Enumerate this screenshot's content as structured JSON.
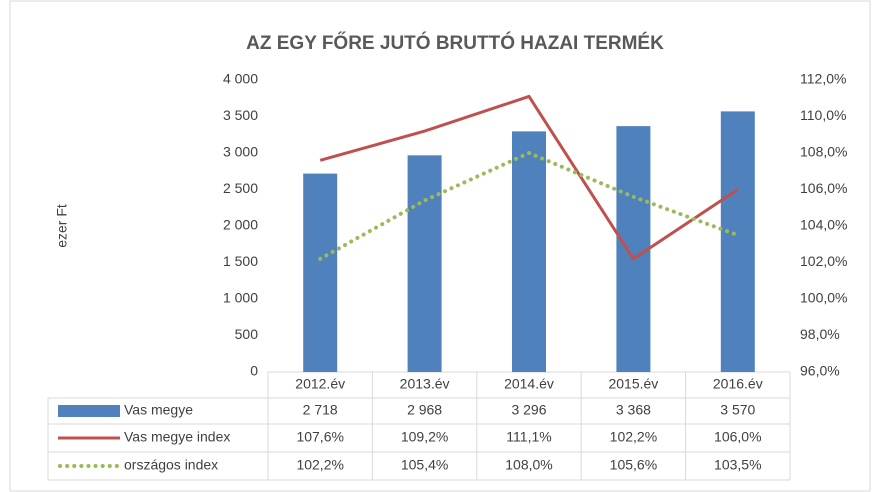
{
  "chart_data": {
    "type": "bar",
    "title": "AZ EGY FŐRE JUTÓ BRUTTÓ HAZAI TERMÉK",
    "ylabel": "ezer Ft",
    "categories": [
      "2012.év",
      "2013.év",
      "2014.év",
      "2015.év",
      "2016.év"
    ],
    "series": [
      {
        "name": "Vas megye",
        "type": "bar",
        "color": "#4f81bd",
        "axis": "y",
        "values": [
          2718,
          2968,
          3296,
          3368,
          3570
        ],
        "value_labels": [
          "2 718",
          "2 968",
          "3 296",
          "3 368",
          "3 570"
        ]
      },
      {
        "name": "Vas megye index",
        "type": "line",
        "color": "#c0504d",
        "axis": "y2",
        "style": "solid",
        "values": [
          107.6,
          109.2,
          111.1,
          102.2,
          106.0
        ],
        "value_labels": [
          "107,6%",
          "109,2%",
          "111,1%",
          "102,2%",
          "106,0%"
        ]
      },
      {
        "name": "országos index",
        "type": "line",
        "color": "#9bbb59",
        "axis": "y2",
        "style": "dotted",
        "values": [
          102.2,
          105.4,
          108.0,
          105.6,
          103.5
        ],
        "value_labels": [
          "102,2%",
          "105,4%",
          "108,0%",
          "105,6%",
          "103,5%"
        ]
      }
    ],
    "ylim": [
      0,
      4000
    ],
    "yticks": [
      0,
      500,
      {
        "value": 1000,
        "label": "1 000"
      },
      {
        "value": 1500,
        "label": "1 500"
      },
      {
        "value": 2000,
        "label": "2 000"
      },
      {
        "value": 2500,
        "label": "2 500"
      },
      {
        "value": 3000,
        "label": "3 000"
      },
      {
        "value": 3500,
        "label": "3 500"
      },
      {
        "value": 4000,
        "label": "4 000"
      }
    ],
    "y2lim": [
      96,
      112
    ],
    "y2ticks": [
      {
        "value": 96,
        "label": "96,0%"
      },
      {
        "value": 98,
        "label": "98,0%"
      },
      {
        "value": 100,
        "label": "100,0%"
      },
      {
        "value": 102,
        "label": "102,0%"
      },
      {
        "value": 104,
        "label": "104,0%"
      },
      {
        "value": 106,
        "label": "106,0%"
      },
      {
        "value": 108,
        "label": "108,0%"
      },
      {
        "value": 110,
        "label": "110,0%"
      },
      {
        "value": 112,
        "label": "112,0%"
      }
    ],
    "grid": false,
    "data_table": true
  }
}
